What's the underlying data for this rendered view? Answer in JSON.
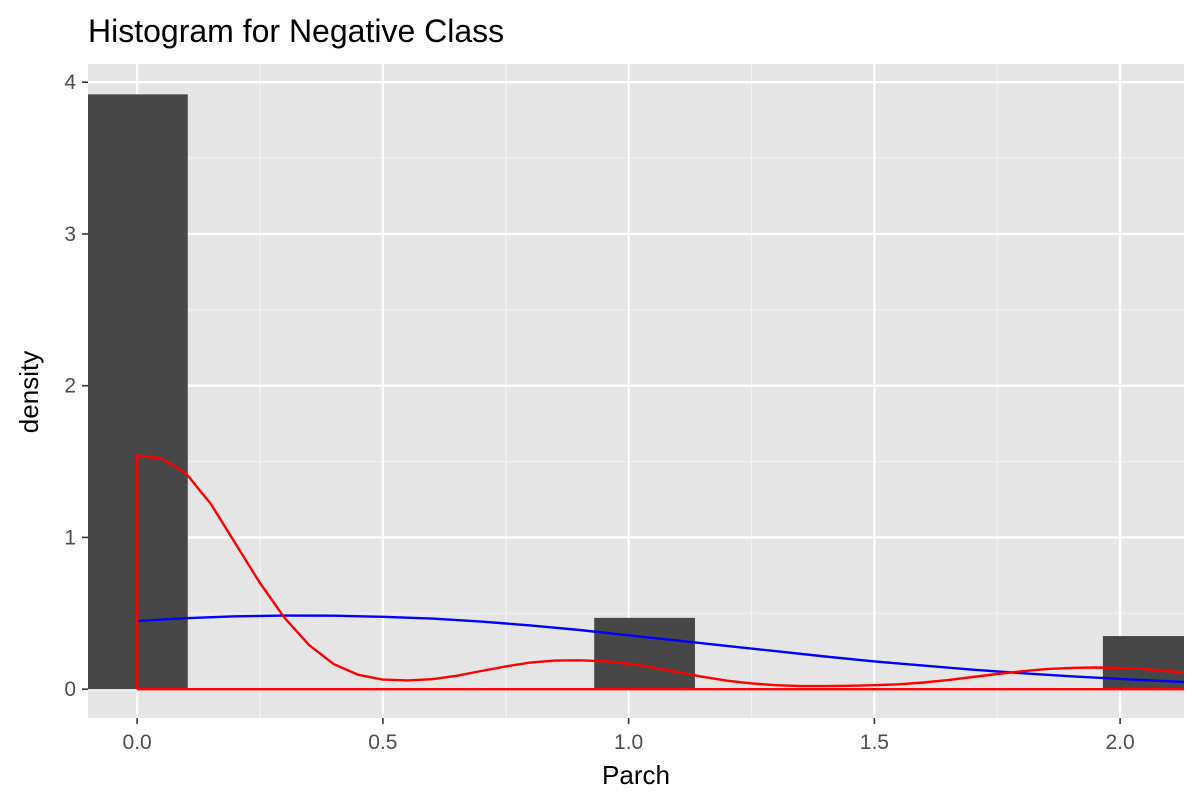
{
  "chart_data": {
    "type": "bar",
    "title": "Histogram for Negative Class",
    "xlabel": "Parch",
    "ylabel": "density",
    "xlim": [
      -0.1,
      2.13
    ],
    "ylim": [
      -0.19,
      4.12
    ],
    "xticks": [
      0,
      0.5,
      1,
      1.5,
      2
    ],
    "xtick_labels": [
      "0.0",
      "0.5",
      "1.0",
      "1.5",
      "2.0"
    ],
    "yticks": [
      0,
      1,
      2,
      3,
      4
    ],
    "ytick_labels": [
      "0",
      "1",
      "2",
      "3",
      "4"
    ],
    "grid": true,
    "bars": [
      {
        "x0": -0.103,
        "x1": 0.103,
        "value": 3.92
      },
      {
        "x0": 0.93,
        "x1": 1.135,
        "value": 0.47
      },
      {
        "x0": 1.965,
        "x1": 2.17,
        "value": 0.35
      }
    ],
    "bar_color": "#474747",
    "curves": [
      {
        "color": "#0000ff",
        "x": [
          0,
          0.1,
          0.2,
          0.3,
          0.4,
          0.5,
          0.6,
          0.7,
          0.8,
          0.9,
          1.0,
          1.1,
          1.2,
          1.3,
          1.4,
          1.5,
          1.6,
          1.7,
          1.8,
          1.9,
          2.0,
          2.1,
          2.13
        ],
        "y": [
          0.45,
          0.468,
          0.48,
          0.485,
          0.484,
          0.477,
          0.465,
          0.445,
          0.42,
          0.39,
          0.355,
          0.32,
          0.285,
          0.25,
          0.215,
          0.183,
          0.155,
          0.128,
          0.105,
          0.085,
          0.068,
          0.052,
          0.048
        ]
      },
      {
        "color": "#ff0000",
        "x": [
          0,
          0,
          0.05,
          0.1,
          0.15,
          0.2,
          0.25,
          0.3,
          0.35,
          0.4,
          0.45,
          0.5,
          0.55,
          0.6,
          0.65,
          0.7,
          0.75,
          0.8,
          0.85,
          0.9,
          0.95,
          1.0,
          1.05,
          1.1,
          1.15,
          1.2,
          1.25,
          1.3,
          1.35,
          1.4,
          1.45,
          1.5,
          1.55,
          1.6,
          1.65,
          1.7,
          1.75,
          1.8,
          1.85,
          1.9,
          1.95,
          2.0,
          2.05,
          2.1,
          2.13
        ],
        "y": [
          0,
          1.54,
          1.52,
          1.42,
          1.22,
          0.96,
          0.7,
          0.47,
          0.29,
          0.165,
          0.095,
          0.063,
          0.058,
          0.066,
          0.088,
          0.12,
          0.15,
          0.175,
          0.188,
          0.19,
          0.184,
          0.168,
          0.142,
          0.112,
          0.082,
          0.056,
          0.038,
          0.026,
          0.02,
          0.02,
          0.022,
          0.026,
          0.032,
          0.044,
          0.06,
          0.08,
          0.1,
          0.118,
          0.132,
          0.14,
          0.143,
          0.14,
          0.132,
          0.118,
          0.11
        ]
      },
      {
        "color": "#ff0000",
        "x": [
          0,
          2.13
        ],
        "y": [
          0,
          0
        ]
      }
    ]
  }
}
